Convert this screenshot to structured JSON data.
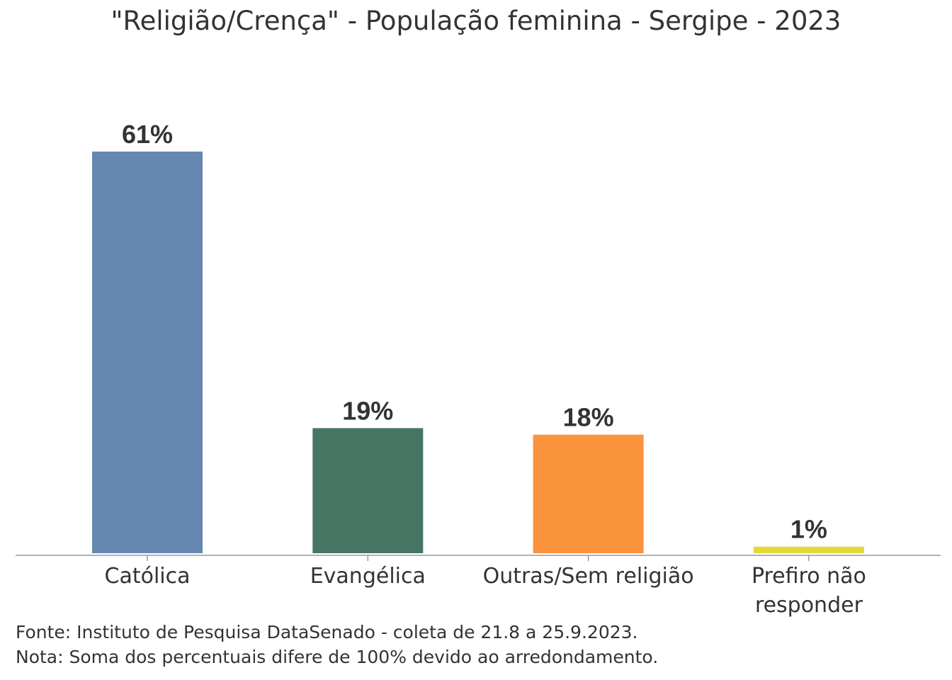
{
  "chart_data": {
    "type": "bar",
    "title": "\"Religião/Crença\" - População feminina - Sergipe - 2023",
    "categories": [
      [
        "Católica"
      ],
      [
        "Evangélica"
      ],
      [
        "Outras/Sem religião"
      ],
      [
        "Prefiro não",
        "responder"
      ]
    ],
    "values": [
      61,
      19,
      18,
      1
    ],
    "value_labels": [
      "61%",
      "19%",
      "18%",
      "1%"
    ],
    "colors": [
      "#6688B0",
      "#467563",
      "#FB923C",
      "#E3D93A"
    ],
    "xlabel": "",
    "ylabel": "",
    "ylim": [
      0,
      61
    ],
    "grid": false
  },
  "notes": {
    "source": "Fonte: Instituto de Pesquisa DataSenado - coleta de 21.8 a 25.9.2023.",
    "note": "Nota: Soma dos percentuais difere de 100% devido ao arredondamento."
  }
}
